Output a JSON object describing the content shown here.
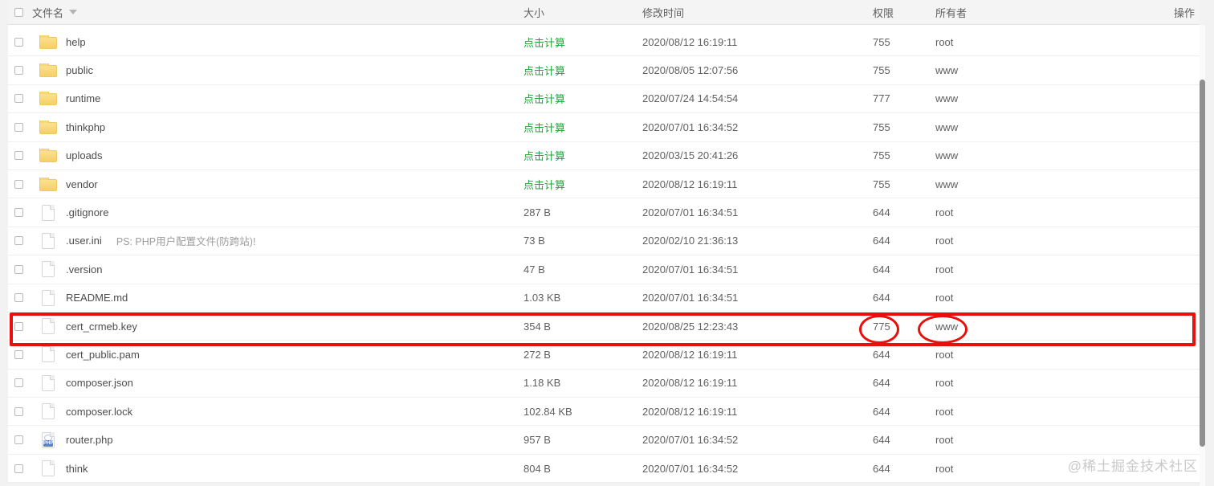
{
  "header": {
    "columns": [
      "文件名",
      "大小",
      "修改时间",
      "权限",
      "所有者",
      "操作"
    ]
  },
  "rows": [
    {
      "name": "help",
      "type": "folder",
      "note": "",
      "size": "点击计算",
      "size_is_link": true,
      "mtime": "2020/08/12 16:19:11",
      "perm": "755",
      "owner": "root"
    },
    {
      "name": "public",
      "type": "folder",
      "note": "",
      "size": "点击计算",
      "size_is_link": true,
      "mtime": "2020/08/05 12:07:56",
      "perm": "755",
      "owner": "www"
    },
    {
      "name": "runtime",
      "type": "folder",
      "note": "",
      "size": "点击计算",
      "size_is_link": true,
      "mtime": "2020/07/24 14:54:54",
      "perm": "777",
      "owner": "www"
    },
    {
      "name": "thinkphp",
      "type": "folder",
      "note": "",
      "size": "点击计算",
      "size_is_link": true,
      "mtime": "2020/07/01 16:34:52",
      "perm": "755",
      "owner": "www"
    },
    {
      "name": "uploads",
      "type": "folder",
      "note": "",
      "size": "点击计算",
      "size_is_link": true,
      "mtime": "2020/03/15 20:41:26",
      "perm": "755",
      "owner": "www"
    },
    {
      "name": "vendor",
      "type": "folder",
      "note": "",
      "size": "点击计算",
      "size_is_link": true,
      "mtime": "2020/08/12 16:19:11",
      "perm": "755",
      "owner": "www"
    },
    {
      "name": ".gitignore",
      "type": "file",
      "note": "",
      "size": "287 B",
      "size_is_link": false,
      "mtime": "2020/07/01 16:34:51",
      "perm": "644",
      "owner": "root"
    },
    {
      "name": ".user.ini",
      "type": "file",
      "note": "PS: PHP用户配置文件(防跨站)!",
      "size": "73 B",
      "size_is_link": false,
      "mtime": "2020/02/10 21:36:13",
      "perm": "644",
      "owner": "root"
    },
    {
      "name": ".version",
      "type": "file",
      "note": "",
      "size": "47 B",
      "size_is_link": false,
      "mtime": "2020/07/01 16:34:51",
      "perm": "644",
      "owner": "root"
    },
    {
      "name": "README.md",
      "type": "file",
      "note": "",
      "size": "1.03 KB",
      "size_is_link": false,
      "mtime": "2020/07/01 16:34:51",
      "perm": "644",
      "owner": "root"
    },
    {
      "name": "cert_crmeb.key",
      "type": "file",
      "note": "",
      "size": "354 B",
      "size_is_link": false,
      "mtime": "2020/08/25 12:23:43",
      "perm": "775",
      "owner": "www"
    },
    {
      "name": "cert_public.pam",
      "type": "file",
      "note": "",
      "size": "272 B",
      "size_is_link": false,
      "mtime": "2020/08/12 16:19:11",
      "perm": "644",
      "owner": "root"
    },
    {
      "name": "composer.json",
      "type": "file",
      "note": "",
      "size": "1.18 KB",
      "size_is_link": false,
      "mtime": "2020/08/12 16:19:11",
      "perm": "644",
      "owner": "root"
    },
    {
      "name": "composer.lock",
      "type": "file",
      "note": "",
      "size": "102.84 KB",
      "size_is_link": false,
      "mtime": "2020/08/12 16:19:11",
      "perm": "644",
      "owner": "root"
    },
    {
      "name": "router.php",
      "type": "php",
      "note": "",
      "size": "957 B",
      "size_is_link": false,
      "mtime": "2020/07/01 16:34:52",
      "perm": "644",
      "owner": "root"
    },
    {
      "name": "think",
      "type": "file",
      "note": "",
      "size": "804 B",
      "size_is_link": false,
      "mtime": "2020/07/01 16:34:52",
      "perm": "644",
      "owner": "root"
    }
  ],
  "annotation": {
    "highlighted_row": "cert_crmeb.key",
    "circled_perm": "775",
    "circled_owner": "www"
  },
  "watermark": "@稀土掘金技术社区",
  "colors": {
    "accent_green": "#20a53a",
    "annotation_red": "#e8100c"
  }
}
